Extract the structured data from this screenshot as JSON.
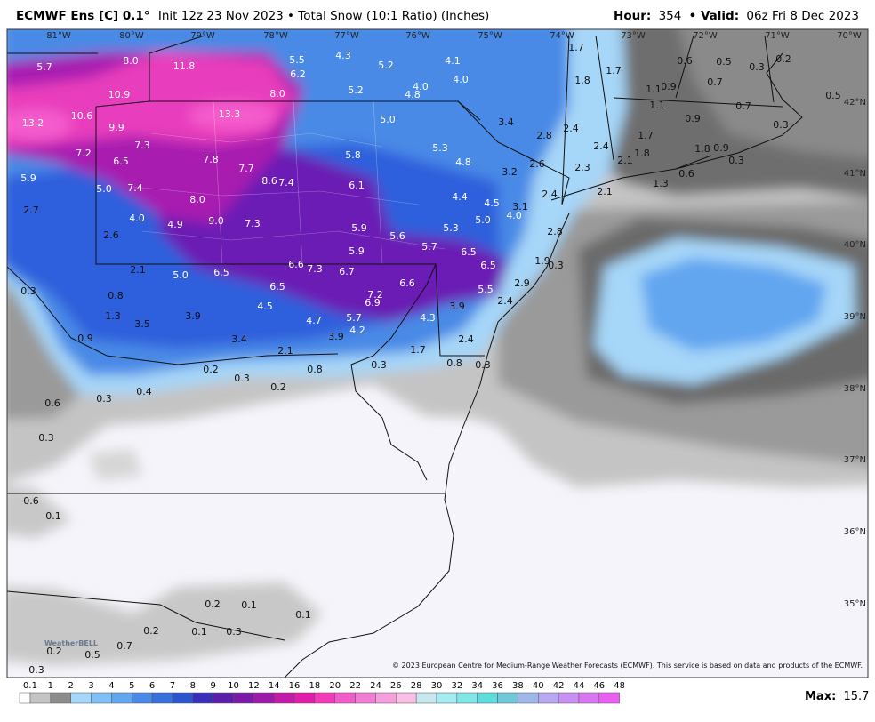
{
  "header": {
    "model": "ECMWF Ens [C] 0.1°",
    "subtitle": "Init 12z 23 Nov 2023 • Total Snow (10:1 Ratio) (Inches)",
    "hour_label": "Hour:",
    "hour": "354",
    "valid_label": "• Valid:",
    "valid": "06z Fri 8 Dec 2023"
  },
  "map": {
    "longitudes": [
      "81°W",
      "80°W",
      "79°W",
      "78°W",
      "77°W",
      "76°W",
      "75°W",
      "74°W",
      "73°W",
      "72°W",
      "71°W",
      "70°W"
    ],
    "latitudes": [
      "42°N",
      "41°N",
      "40°N",
      "39°N",
      "38°N",
      "37°N",
      "36°N",
      "35°N"
    ],
    "labels": [
      "5.7",
      "8.0",
      "11.8",
      "5.5",
      "4.3",
      "5.2",
      "4.1",
      "1.7",
      "1.7",
      "0.6",
      "0.5",
      "0.3",
      "0.2",
      "6.2",
      "4.0",
      "1.8",
      "0.7",
      "1.1",
      "0.9",
      "0.5",
      "10.9",
      "8.0",
      "5.2",
      "4.8",
      "4.0",
      "1.1",
      "0.7",
      "13.2",
      "10.6",
      "13.3",
      "5.0",
      "3.4",
      "2.4",
      "0.9",
      "0.3",
      "9.9",
      "2.8",
      "1.7",
      "7.2",
      "7.3",
      "5.3",
      "2.4",
      "1.8",
      "0.9",
      "6.5",
      "7.8",
      "7.7",
      "5.8",
      "4.8",
      "2.6",
      "1.8",
      "0.3",
      "2.3",
      "2.1",
      "5.9",
      "8.6",
      "7.4",
      "3.2",
      "1.3",
      "0.6",
      "5.0",
      "7.4",
      "6.1",
      "2.1",
      "2.4",
      "8.0",
      "4.4",
      "4.5",
      "3.1",
      "2.7",
      "4.0",
      "9.0",
      "7.3",
      "5.0",
      "4.0",
      "4.9",
      "5.9",
      "5.3",
      "5.6",
      "2.8",
      "2.6",
      "5.7",
      "5.9",
      "6.5",
      "1.9",
      "0.3",
      "2.1",
      "6.6",
      "7.3",
      "6.7",
      "6.5",
      "5.0",
      "6.5",
      "0.3",
      "6.5",
      "6.6",
      "5.5",
      "2.9",
      "0.8",
      "7.2",
      "6.9",
      "2.4",
      "4.5",
      "3.9",
      "1.3",
      "3.9",
      "4.7",
      "5.7",
      "4.3",
      "3.5",
      "4.2",
      "0.9",
      "3.4",
      "3.9",
      "1.7",
      "2.4",
      "2.1",
      "0.2",
      "0.8",
      "0.3",
      "0.8",
      "0.3",
      "0.3",
      "0.2",
      "0.4",
      "0.3",
      "0.6",
      "0.3",
      "0.6",
      "0.1",
      "0.2",
      "0.1",
      "0.1",
      "0.2",
      "0.1",
      "0.3",
      "0.2",
      "0.5",
      "0.7",
      "0.3"
    ],
    "logo": "WeatherBELL",
    "credit": "© 2023 European Centre for Medium-Range Weather Forecasts (ECMWF). This service is based on data and products of the ECMWF."
  },
  "colorbar": {
    "ticks": [
      0.1,
      1,
      2,
      3,
      4,
      5,
      6,
      7,
      8,
      9,
      10,
      12,
      14,
      16,
      18,
      20,
      22,
      24,
      26,
      28,
      30,
      32,
      34,
      36,
      38,
      40,
      42,
      44,
      46,
      48
    ],
    "colors": [
      "#ffffff",
      "#c4c4c4",
      "#8c8c8c",
      "#a6d6f8",
      "#80c0f5",
      "#62a6f0",
      "#4a8ae6",
      "#3a70dc",
      "#2c55cf",
      "#3a2fb8",
      "#5a1fa8",
      "#7a1aa6",
      "#9c1aa8",
      "#c01ca8",
      "#e01ea8",
      "#f03cb8",
      "#f05cc8",
      "#f07fd4",
      "#f4a0dc",
      "#f8c0e6",
      "#c8e8f0",
      "#a6ecf2",
      "#80e6e6",
      "#60dcdc",
      "#72c8d8",
      "#a0b8e8",
      "#b8a8f0",
      "#c890f0",
      "#d878f0",
      "#e860f0"
    ],
    "max_label": "Max:",
    "max": "15.7"
  }
}
